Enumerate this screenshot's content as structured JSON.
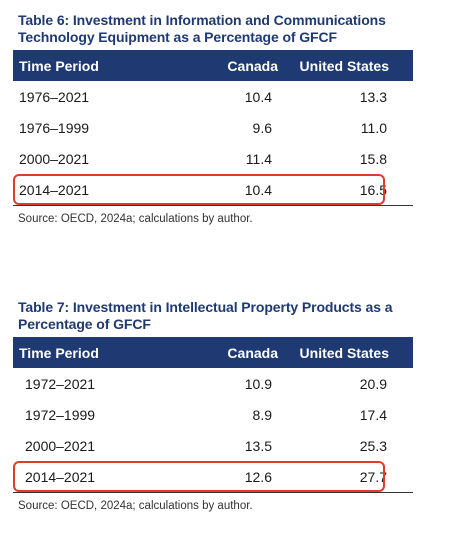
{
  "tables": [
    {
      "caption_line1": "Table 6: Investment in Information and Communications",
      "caption_line2": "Technology Equipment as a Percentage of GFCF",
      "headers": [
        "Time Period",
        "Canada",
        "United States"
      ],
      "rows": [
        {
          "period": "1976–2021",
          "canada": "10.4",
          "us": "13.3"
        },
        {
          "period": "1976–1999",
          "canada": "9.6",
          "us": "11.0"
        },
        {
          "period": "2000–2021",
          "canada": "11.4",
          "us": "15.8"
        },
        {
          "period": "2014–2021",
          "canada": "10.4",
          "us": "16.5"
        }
      ],
      "source": "Source: OECD, 2024a; calculations by author.",
      "highlight_color": "#e23b2e"
    },
    {
      "caption_line1": "Table 7:  Investment in Intellectual Property Products as a",
      "caption_line2": "Percentage of GFCF",
      "headers": [
        "Time Period",
        "Canada",
        "United States"
      ],
      "rows": [
        {
          "period": "1972–2021",
          "canada": "10.9",
          "us": "20.9"
        },
        {
          "period": "1972–1999",
          "canada": "8.9",
          "us": "17.4"
        },
        {
          "period": "2000–2021",
          "canada": "13.5",
          "us": "25.3"
        },
        {
          "period": "2014–2021",
          "canada": "12.6",
          "us": "27.7"
        }
      ],
      "source": "Source: OECD, 2024a; calculations by author.",
      "highlight_color": "#e23b2e"
    }
  ],
  "colors": {
    "header_bg": "#1f3a73",
    "caption": "#1f3a73",
    "highlight": "#e23b2e"
  }
}
